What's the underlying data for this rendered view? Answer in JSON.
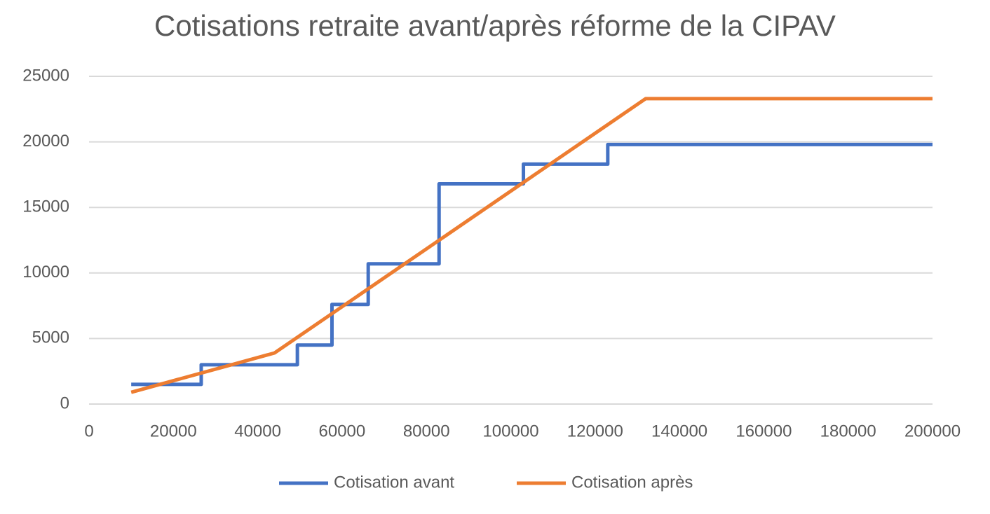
{
  "chart_data": {
    "type": "line",
    "title": "Cotisations retraite avant/après réforme de la CIPAV",
    "series": [
      {
        "name": "Cotisation avant",
        "color": "#4472c4",
        "x": [
          10000,
          26600,
          26600,
          49400,
          49400,
          57600,
          57600,
          66200,
          66200,
          83000,
          83000,
          103000,
          103000,
          123000,
          123000,
          200000
        ],
        "values": [
          1500,
          1500,
          3000,
          3000,
          4500,
          4500,
          7600,
          7600,
          10700,
          10700,
          16800,
          16800,
          18300,
          18300,
          19800,
          19800
        ]
      },
      {
        "name": "Cotisation après",
        "color": "#ed7d31",
        "x": [
          10000,
          44000,
          132000,
          200000
        ],
        "values": [
          900,
          3900,
          23300,
          23300
        ]
      }
    ],
    "xlim": [
      0,
      200000
    ],
    "xticks": [
      0,
      20000,
      40000,
      60000,
      80000,
      100000,
      120000,
      140000,
      160000,
      180000,
      200000
    ],
    "ylim": [
      0,
      25000
    ],
    "yticks": [
      0,
      5000,
      10000,
      15000,
      20000,
      25000
    ],
    "grid": true,
    "legend": "bottom"
  }
}
